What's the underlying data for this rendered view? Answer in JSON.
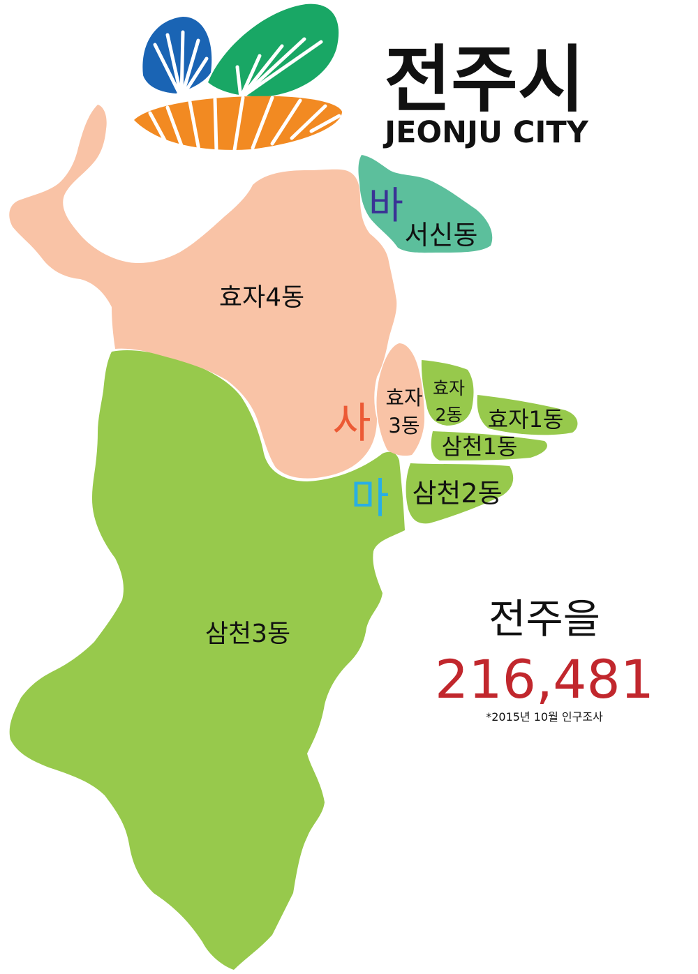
{
  "logo": {
    "title_ko": "전주시",
    "title_en": "JEONJU CITY"
  },
  "districts": {
    "hyoja4": "효자4동",
    "seosin": "서신동",
    "hyoja3_line1": "효자",
    "hyoja3_line2": "3동",
    "hyoja2_line1": "효자",
    "hyoja2_line2": "2동",
    "hyoja1": "효자1동",
    "samcheon1": "삼천1동",
    "samcheon2": "삼천2동",
    "samcheon3": "삼천3동"
  },
  "section_markers": {
    "ba": "바",
    "sa": "사",
    "ma": "마"
  },
  "info": {
    "electoral_district": "전주을",
    "population": "216,481",
    "note": "*2015년 10월 인구조사"
  },
  "colors": {
    "peach": "#f9c3a6",
    "green": "#97c94c",
    "teal": "#5cbf9c",
    "logo_blue": "#1a64b4",
    "logo_green": "#19a765",
    "logo_orange": "#f28a22",
    "marker_ba": "#3a3395",
    "marker_sa": "#ec5a35",
    "marker_ma": "#29aee4",
    "population": "#c1272d"
  }
}
